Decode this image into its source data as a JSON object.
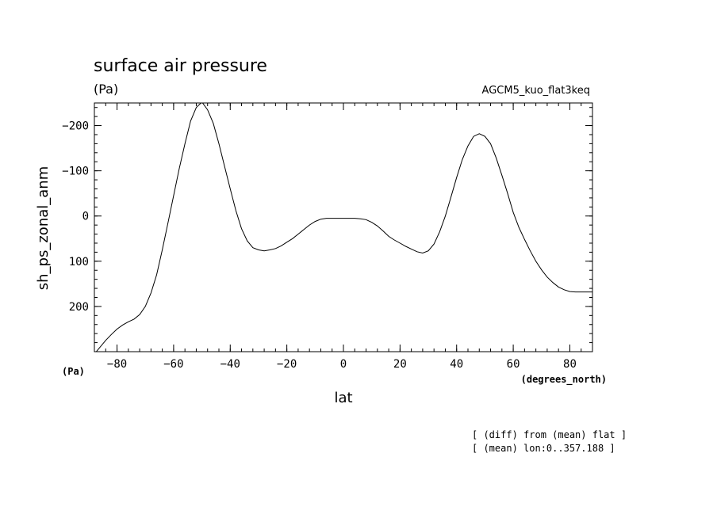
{
  "chart_data": {
    "type": "line",
    "title": "surface air pressure",
    "units_label": "(Pa)",
    "dataset_label": "AGCM5_kuo_flat3keq",
    "xlabel": "lat",
    "x_units_label": "(degrees_north)",
    "y_units_label": "(Pa)",
    "ylabel": "sh_ps_zonal_anm",
    "xlim": [
      -88,
      88
    ],
    "ylim": [
      300,
      -250
    ],
    "y_inverted": true,
    "grid": false,
    "legend": "none",
    "x_ticks": [
      -80,
      -60,
      -40,
      -20,
      0,
      20,
      40,
      60,
      80
    ],
    "x_tick_labels": [
      "−80",
      "−60",
      "−40",
      "−20",
      "0",
      "20",
      "40",
      "60",
      "80"
    ],
    "y_ticks": [
      -200,
      -100,
      0,
      100,
      200
    ],
    "y_tick_labels": [
      "−200",
      "−100",
      "0",
      "100",
      "200"
    ],
    "series": [
      {
        "x": [
          -88,
          -86,
          -84,
          -82,
          -80,
          -78,
          -76,
          -74,
          -72,
          -70,
          -68,
          -66,
          -64,
          -62,
          -60,
          -58,
          -56,
          -54,
          -52,
          -50,
          -48,
          -46,
          -44,
          -42,
          -40,
          -38,
          -36,
          -34,
          -32,
          -30,
          -28,
          -26,
          -24,
          -22,
          -20,
          -18,
          -16,
          -14,
          -12,
          -10,
          -8,
          -6,
          -4,
          -2,
          0,
          2,
          4,
          6,
          8,
          10,
          12,
          14,
          16,
          18,
          20,
          22,
          24,
          26,
          28,
          30,
          32,
          34,
          36,
          38,
          40,
          42,
          44,
          46,
          48,
          50,
          52,
          54,
          56,
          58,
          60,
          62,
          64,
          66,
          68,
          70,
          72,
          74,
          76,
          78,
          80,
          82,
          84,
          86,
          88
        ],
        "values": [
          305,
          290,
          275,
          262,
          250,
          241,
          234,
          228,
          218,
          200,
          170,
          130,
          75,
          15,
          -45,
          -105,
          -160,
          -210,
          -240,
          -252,
          -235,
          -205,
          -160,
          -110,
          -60,
          -12,
          28,
          55,
          70,
          75,
          77,
          75,
          72,
          66,
          58,
          50,
          40,
          30,
          20,
          12,
          7,
          5,
          5,
          5,
          5,
          5,
          5,
          6,
          8,
          14,
          22,
          33,
          45,
          53,
          60,
          67,
          73,
          79,
          82,
          77,
          62,
          35,
          0,
          -42,
          -85,
          -125,
          -155,
          -176,
          -182,
          -176,
          -160,
          -128,
          -90,
          -50,
          -8,
          25,
          52,
          77,
          100,
          119,
          135,
          147,
          157,
          163,
          167,
          168,
          168,
          168,
          168
        ]
      }
    ]
  },
  "footnotes": [
    "[ (diff) from (mean) flat ]",
    "[ (mean) lon:0..357.188 ]"
  ]
}
